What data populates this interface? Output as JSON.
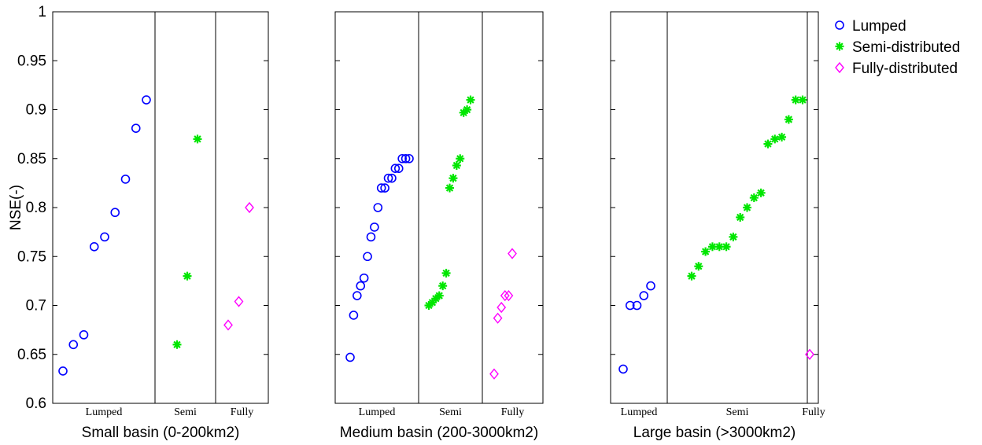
{
  "chart_data": {
    "type": "scatter",
    "ylabel": "NSE(-)",
    "ylim": [
      0.6,
      1.0
    ],
    "yticks": [
      "0.6",
      "0.65",
      "0.7",
      "0.75",
      "0.8",
      "0.85",
      "0.9",
      "0.95",
      "1"
    ],
    "grid": false,
    "legend_position": "top-right",
    "colors": {
      "Lumped": "#0000ff",
      "Semi-distributed": "#00e600",
      "Fully-distributed": "#ff00ff"
    },
    "legend": [
      {
        "name": "Lumped",
        "marker": "circle",
        "color": "#0000ff"
      },
      {
        "name": "Semi-distributed",
        "marker": "asterisk",
        "color": "#00e600"
      },
      {
        "name": "Fully-distributed",
        "marker": "diamond",
        "color": "#ff00ff"
      }
    ],
    "panels": [
      {
        "xlabel": "Small basin (0-200km2)",
        "section_labels": [
          "Lumped",
          "Semi",
          "Fully"
        ],
        "series": [
          {
            "name": "Lumped",
            "values": [
              0.633,
              0.66,
              0.67,
              0.76,
              0.77,
              0.795,
              0.829,
              0.881,
              0.91
            ]
          },
          {
            "name": "Semi-distributed",
            "values": [
              0.66,
              0.73,
              0.87
            ]
          },
          {
            "name": "Fully-distributed",
            "values": [
              0.68,
              0.704,
              0.8
            ]
          }
        ]
      },
      {
        "xlabel": "Medium basin (200-3000km2)",
        "section_labels": [
          "Lumped",
          "Semi",
          "Fully"
        ],
        "series": [
          {
            "name": "Lumped",
            "values": [
              0.647,
              0.69,
              0.71,
              0.72,
              0.728,
              0.75,
              0.77,
              0.78,
              0.8,
              0.82,
              0.82,
              0.83,
              0.83,
              0.84,
              0.84,
              0.85,
              0.85,
              0.85
            ]
          },
          {
            "name": "Semi-distributed",
            "values": [
              0.7,
              0.703,
              0.707,
              0.71,
              0.72,
              0.733,
              0.82,
              0.83,
              0.843,
              0.85,
              0.897,
              0.9,
              0.91
            ]
          },
          {
            "name": "Fully-distributed",
            "values": [
              0.63,
              0.687,
              0.698,
              0.71,
              0.71,
              0.753
            ]
          }
        ]
      },
      {
        "xlabel": "Large basin (>3000km2)",
        "section_labels": [
          "Lumped",
          "Semi",
          "Fully"
        ],
        "series": [
          {
            "name": "Lumped",
            "values": [
              0.635,
              0.7,
              0.7,
              0.71,
              0.72
            ]
          },
          {
            "name": "Semi-distributed",
            "values": [
              0.73,
              0.74,
              0.755,
              0.76,
              0.76,
              0.76,
              0.77,
              0.79,
              0.8,
              0.81,
              0.815,
              0.865,
              0.87,
              0.872,
              0.89,
              0.91,
              0.91
            ]
          },
          {
            "name": "Fully-distributed",
            "values": [
              0.65
            ]
          }
        ]
      }
    ]
  }
}
